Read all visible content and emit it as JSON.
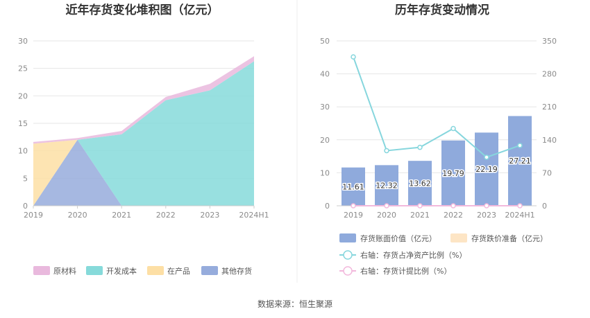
{
  "page": {
    "source": "数据来源：恒生聚源"
  },
  "colors": {
    "raw_material": "#e9b9dd",
    "development_cost": "#86dada",
    "work_in_progress": "#fddfa5",
    "other_inventory": "#96acdc",
    "book_value_bar": "#8faadc",
    "impairment_bar": "#fde5c5",
    "ratio_line": "#86d6dd",
    "provision_line": "#f2b8dc",
    "axis": "#cccccc",
    "grid": "#e6e6e6"
  },
  "chart_data": [
    {
      "type": "area",
      "stacked": true,
      "title": "近年存货变化堆积图（亿元）",
      "categories": [
        "2019",
        "2020",
        "2021",
        "2022",
        "2023",
        "2024H1"
      ],
      "ylim": [
        0,
        30
      ],
      "yticks": [
        0,
        5,
        10,
        15,
        20,
        25,
        30
      ],
      "grid": true,
      "legend_position": "bottom",
      "series": [
        {
          "name": "其他存货",
          "color_key": "other_inventory",
          "values": [
            0,
            12.0,
            0,
            0,
            0,
            0
          ]
        },
        {
          "name": "在产品",
          "color_key": "work_in_progress",
          "values": [
            11.3,
            0,
            0,
            0,
            0,
            0
          ]
        },
        {
          "name": "开发成本",
          "color_key": "development_cost",
          "values": [
            0,
            0,
            13.0,
            19.2,
            21.0,
            26.3
          ]
        },
        {
          "name": "原材料",
          "color_key": "raw_material",
          "values": [
            0.31,
            0.32,
            0.62,
            0.59,
            1.19,
            0.91
          ]
        }
      ],
      "legend": [
        {
          "name": "原材料",
          "color_key": "raw_material"
        },
        {
          "name": "开发成本",
          "color_key": "development_cost"
        },
        {
          "name": "在产品",
          "color_key": "work_in_progress"
        },
        {
          "name": "其他存货",
          "color_key": "other_inventory"
        }
      ]
    },
    {
      "type": "bar",
      "title": "历年存货变动情况",
      "categories": [
        "2019",
        "2020",
        "2021",
        "2022",
        "2023",
        "2024H1"
      ],
      "ylim_left": [
        0,
        50
      ],
      "yticks_left": [
        0,
        10,
        20,
        30,
        40,
        50
      ],
      "ylim_right": [
        0,
        350
      ],
      "yticks_right": [
        0,
        70,
        140,
        210,
        280,
        350
      ],
      "grid": true,
      "legend_position": "bottom",
      "series": [
        {
          "name": "存货账面价值（亿元）",
          "type": "bar",
          "axis": "left",
          "color_key": "book_value_bar",
          "values": [
            11.61,
            12.32,
            13.62,
            19.79,
            22.19,
            27.21
          ],
          "labels": [
            "11.61",
            "12.32",
            "13.62",
            "19.79",
            "22.19",
            "27.21"
          ]
        },
        {
          "name": "存货跌价准备（亿元）",
          "type": "bar",
          "axis": "left",
          "color_key": "impairment_bar",
          "values": [
            0,
            0,
            0,
            0,
            0,
            0
          ]
        },
        {
          "name": "右轴：存货占净资产比例（%）",
          "type": "line",
          "axis": "right",
          "color_key": "ratio_line",
          "values": [
            316,
            117,
            124,
            164,
            103,
            128
          ]
        },
        {
          "name": "右轴：存货计提比例（%）",
          "type": "line",
          "axis": "right",
          "color_key": "provision_line",
          "values": [
            0,
            0,
            0,
            0,
            0,
            0
          ]
        }
      ]
    }
  ]
}
